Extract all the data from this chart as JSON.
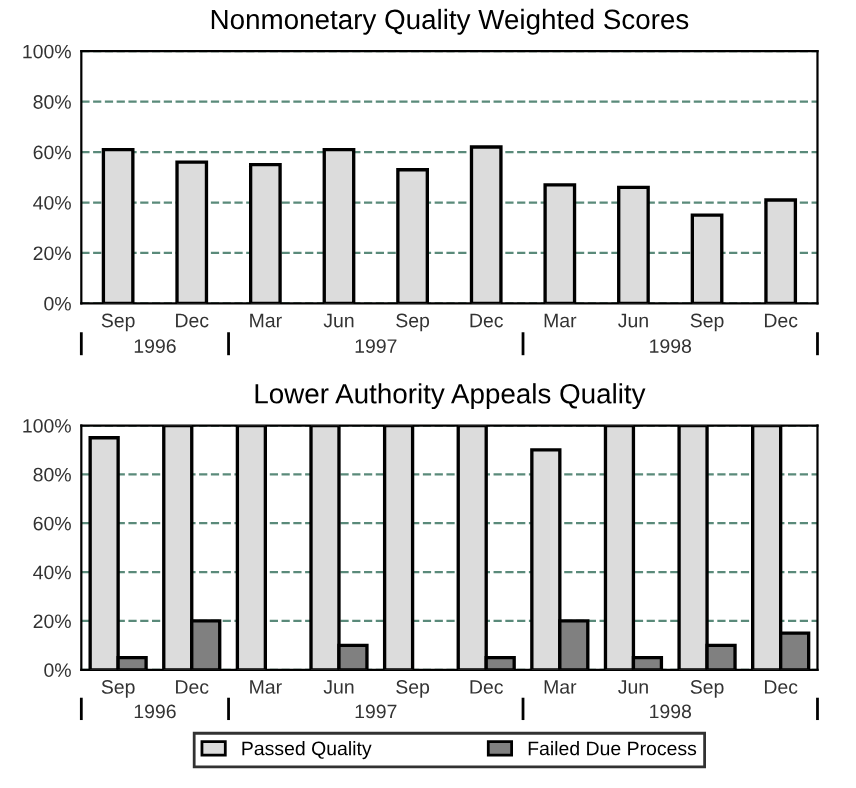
{
  "chart_data": [
    {
      "type": "bar",
      "title": "Nonmonetary Quality Weighted Scores",
      "categories": [
        "Sep",
        "Dec",
        "Mar",
        "Jun",
        "Sep",
        "Dec",
        "Mar",
        "Jun",
        "Sep",
        "Dec"
      ],
      "series": [
        {
          "color": "#dcdcdc",
          "values": [
            61,
            56,
            55,
            61,
            53,
            62,
            47,
            46,
            35,
            41
          ]
        }
      ],
      "annotations": [
        "1996",
        "1997",
        "1998"
      ],
      "ylim": [
        0,
        100
      ],
      "yticks": [
        {
          "value": 0,
          "label": "0%"
        },
        {
          "value": 20,
          "label": "20%"
        },
        {
          "value": 40,
          "label": "40%"
        },
        {
          "value": 60,
          "label": "60%"
        },
        {
          "value": 80,
          "label": "80%"
        },
        {
          "value": 100,
          "label": "100%"
        }
      ],
      "grid": "y",
      "legend": false
    },
    {
      "type": "bar",
      "title": "Lower Authority Appeals Quality",
      "categories": [
        "Sep",
        "Dec",
        "Mar",
        "Jun",
        "Sep",
        "Dec",
        "Mar",
        "Jun",
        "Sep",
        "Dec"
      ],
      "series": [
        {
          "name": "Passed Quality",
          "color": "#dcdcdc",
          "values": [
            95,
            100,
            100,
            100,
            100,
            100,
            90,
            100,
            100,
            100
          ]
        },
        {
          "name": "Failed Due Process",
          "color": "#808080",
          "values": [
            5,
            20,
            0,
            10,
            0,
            5,
            20,
            5,
            10,
            15
          ]
        }
      ],
      "annotations": [
        "1996",
        "1997",
        "1998"
      ],
      "ylim": [
        0,
        100
      ],
      "yticks": [
        {
          "value": 0,
          "label": "0%"
        },
        {
          "value": 20,
          "label": "20%"
        },
        {
          "value": 40,
          "label": "40%"
        },
        {
          "value": 60,
          "label": "60%"
        },
        {
          "value": 80,
          "label": "80%"
        },
        {
          "value": 100,
          "label": "100%"
        }
      ],
      "grid": "y",
      "legend": "bottom"
    }
  ]
}
